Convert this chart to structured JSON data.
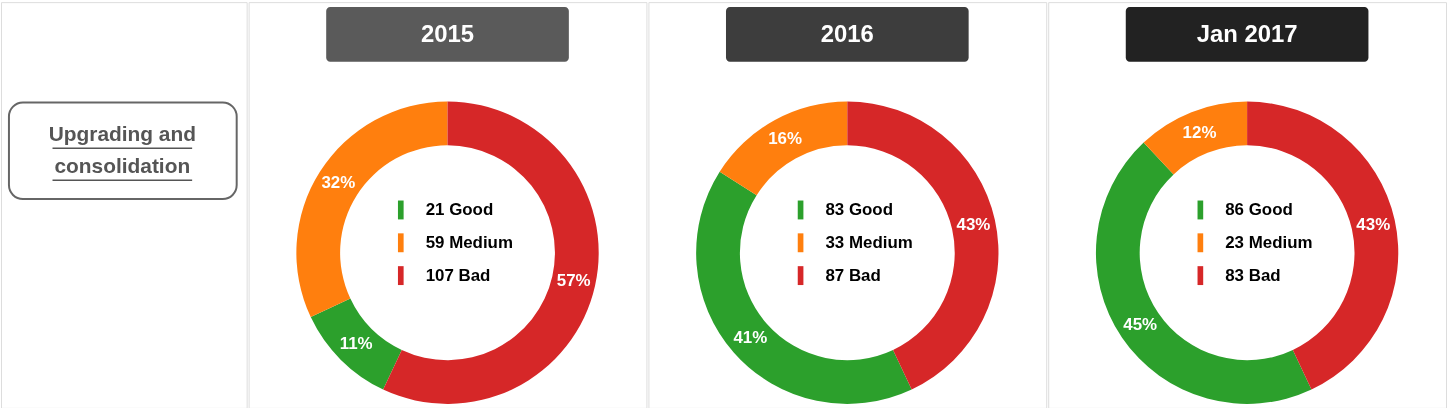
{
  "chart_data": [
    {
      "type": "other",
      "annotations": [
        "Upgrading and consolidation"
      ]
    },
    {
      "type": "donut",
      "title": "2015",
      "categories": [
        "21 Good",
        "59 Medium",
        "107 Bad"
      ],
      "values": [
        11,
        32,
        57
      ],
      "colors": [
        "#2ca02c",
        "#ff7f0e",
        "#d62728"
      ],
      "value_labels": [
        "11%",
        "32%",
        "57%"
      ],
      "legend": "center"
    },
    {
      "type": "donut",
      "title": "2016",
      "categories": [
        "83 Good",
        "33 Medium",
        "87 Bad"
      ],
      "values": [
        41,
        16,
        43
      ],
      "colors": [
        "#2ca02c",
        "#ff7f0e",
        "#d62728"
      ],
      "value_labels": [
        "41%",
        "16%",
        "43%"
      ],
      "legend": "center"
    },
    {
      "type": "donut",
      "title": "Jan 2017",
      "categories": [
        "86 Good",
        "23 Medium",
        "83 Bad"
      ],
      "values": [
        45,
        12,
        43
      ],
      "colors": [
        "#2ca02c",
        "#ff7f0e",
        "#d62728"
      ],
      "value_labels": [
        "45%",
        "12%",
        "43%"
      ],
      "legend": "center"
    }
  ]
}
